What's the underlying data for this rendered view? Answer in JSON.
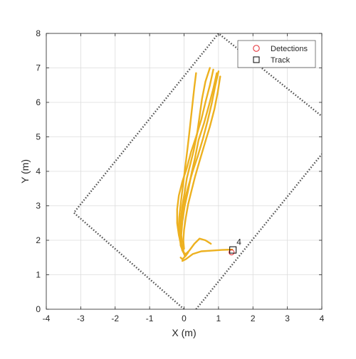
{
  "chart_data": {
    "type": "line",
    "xlabel": "X (m)",
    "ylabel": "Y (m)",
    "xlim": [
      -4,
      4
    ],
    "ylim": [
      0,
      8
    ],
    "xticks": [
      "-4",
      "-3",
      "-2",
      "-1",
      "0",
      "1",
      "2",
      "3",
      "4"
    ],
    "yticks": [
      "0",
      "1",
      "2",
      "3",
      "4",
      "5",
      "6",
      "7",
      "8"
    ],
    "grid": true,
    "legend_position": "top-right",
    "legend": [
      {
        "label": "Detections",
        "marker": "circle",
        "color": "#e3242b"
      },
      {
        "label": "Track",
        "marker": "square",
        "color": "#000000"
      }
    ],
    "sensor_boundary": {
      "style": "dotted",
      "color": "#555555",
      "outer": [
        [
          0,
          0
        ],
        [
          -3.2,
          2.8
        ],
        [
          1.0,
          8.0
        ],
        [
          4.0,
          5.6
        ]
      ],
      "inner": [
        [
          0.35,
          0
        ],
        [
          4.0,
          4.5
        ]
      ]
    },
    "track_history": {
      "color": "#edb120",
      "lines": [
        [
          [
            0.75,
            7.0
          ],
          [
            0.62,
            6.6
          ],
          [
            0.52,
            6.1
          ],
          [
            0.45,
            5.6
          ],
          [
            0.38,
            5.1
          ],
          [
            0.28,
            4.6
          ],
          [
            0.18,
            4.2
          ],
          [
            0.08,
            3.8
          ],
          [
            0.02,
            3.4
          ],
          [
            -0.05,
            3.0
          ],
          [
            -0.1,
            2.6
          ],
          [
            -0.12,
            2.2
          ],
          [
            -0.1,
            1.85
          ],
          [
            -0.02,
            1.65
          ],
          [
            0.05,
            1.6
          ]
        ],
        [
          [
            0.95,
            6.85
          ],
          [
            0.85,
            6.4
          ],
          [
            0.72,
            5.9
          ],
          [
            0.58,
            5.4
          ],
          [
            0.42,
            4.9
          ],
          [
            0.32,
            4.4
          ],
          [
            0.22,
            3.95
          ],
          [
            0.12,
            3.45
          ],
          [
            0.02,
            3.0
          ],
          [
            -0.05,
            2.55
          ],
          [
            -0.08,
            2.15
          ],
          [
            -0.05,
            1.8
          ],
          [
            0.02,
            1.55
          ]
        ],
        [
          [
            1.05,
            6.75
          ],
          [
            0.98,
            6.3
          ],
          [
            0.88,
            5.8
          ],
          [
            0.75,
            5.3
          ],
          [
            0.6,
            4.8
          ],
          [
            0.45,
            4.3
          ],
          [
            0.32,
            3.85
          ],
          [
            0.22,
            3.45
          ],
          [
            0.12,
            3.05
          ],
          [
            0.05,
            2.65
          ],
          [
            0.0,
            2.3
          ],
          [
            -0.02,
            2.0
          ],
          [
            0.0,
            1.75
          ]
        ],
        [
          [
            0.85,
            6.95
          ],
          [
            0.75,
            6.5
          ],
          [
            0.62,
            6.0
          ],
          [
            0.5,
            5.5
          ],
          [
            0.35,
            5.0
          ],
          [
            0.2,
            4.55
          ],
          [
            0.08,
            4.1
          ],
          [
            -0.05,
            3.7
          ],
          [
            -0.15,
            3.3
          ],
          [
            -0.2,
            2.9
          ],
          [
            -0.2,
            2.5
          ],
          [
            -0.15,
            2.15
          ],
          [
            -0.08,
            1.85
          ],
          [
            0.0,
            1.6
          ]
        ],
        [
          [
            0.35,
            6.85
          ],
          [
            0.3,
            6.45
          ],
          [
            0.25,
            6.0
          ],
          [
            0.2,
            5.55
          ],
          [
            0.15,
            5.1
          ],
          [
            0.1,
            4.65
          ],
          [
            0.05,
            4.25
          ],
          [
            0.0,
            3.85
          ],
          [
            -0.05,
            3.45
          ],
          [
            -0.1,
            3.05
          ],
          [
            -0.14,
            2.65
          ],
          [
            -0.16,
            2.3
          ],
          [
            -0.12,
            2.0
          ],
          [
            -0.05,
            1.75
          ]
        ],
        [
          [
            1.0,
            6.9
          ],
          [
            0.9,
            6.45
          ],
          [
            0.8,
            5.95
          ],
          [
            0.68,
            5.45
          ],
          [
            0.55,
            4.95
          ],
          [
            0.4,
            4.45
          ],
          [
            0.25,
            4.0
          ],
          [
            0.12,
            3.55
          ],
          [
            0.0,
            3.1
          ],
          [
            -0.06,
            2.7
          ],
          [
            -0.1,
            2.3
          ],
          [
            -0.1,
            1.95
          ],
          [
            -0.05,
            1.7
          ]
        ],
        [
          [
            0.05,
            1.6
          ],
          [
            0.15,
            1.7
          ],
          [
            0.3,
            1.9
          ],
          [
            0.45,
            2.05
          ],
          [
            0.62,
            2.0
          ],
          [
            0.78,
            1.9
          ]
        ],
        [
          [
            -0.1,
            1.5
          ],
          [
            -0.05,
            1.45
          ],
          [
            0.05,
            1.55
          ],
          [
            0.12,
            1.65
          ]
        ],
        [
          [
            -0.05,
            1.4
          ],
          [
            0.05,
            1.45
          ],
          [
            0.25,
            1.6
          ],
          [
            0.5,
            1.68
          ],
          [
            0.8,
            1.7
          ],
          [
            1.1,
            1.72
          ],
          [
            1.4,
            1.73
          ]
        ]
      ]
    },
    "detection": {
      "x": 1.38,
      "y": 1.65
    },
    "track": {
      "x": 1.42,
      "y": 1.72,
      "id": "4"
    }
  }
}
